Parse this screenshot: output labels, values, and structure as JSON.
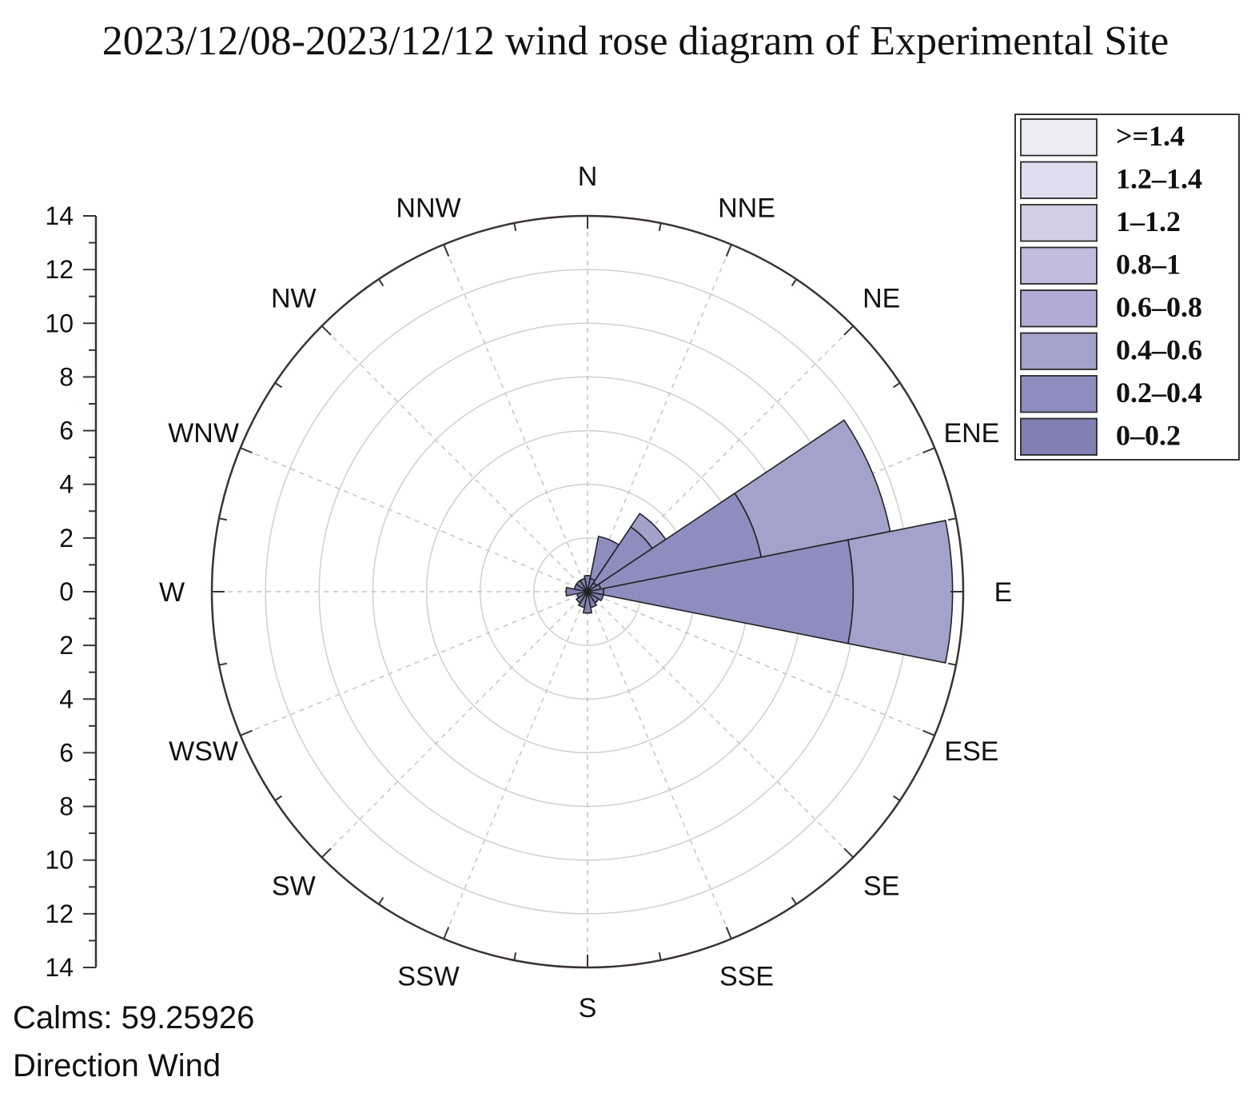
{
  "chart_data": {
    "type": "wind-rose",
    "title": "2023/12/08-2023/12/12 wind rose diagram of Experimental Site",
    "radial_axis": {
      "range": [
        0,
        14
      ],
      "ticks_top": [
        "14",
        "12",
        "10",
        "8",
        "6",
        "4",
        "2",
        "0"
      ],
      "ticks_bottom": [
        "2",
        "4",
        "6",
        "8",
        "10",
        "12",
        "14"
      ]
    },
    "directions": [
      "N",
      "NNE",
      "NE",
      "ENE",
      "E",
      "ESE",
      "SE",
      "SSE",
      "S",
      "SSW",
      "SW",
      "WSW",
      "W",
      "WNW",
      "NW",
      "NNW"
    ],
    "legend": {
      "position": "top-right",
      "bins": [
        ">=1.4",
        "1.2–1.4",
        "1–1.2",
        "0.8–1",
        "0.6–0.8",
        "0.4–0.6",
        "0.2–0.4",
        "0–0.2"
      ],
      "colors": [
        "#ececf4",
        "#e0ddee",
        "#d4cde6",
        "#c3bcde",
        "#b1abd6",
        "#a2a2cb",
        "#8d8dc0",
        "#8080b2"
      ]
    },
    "series": [
      {
        "name": "0–0.2",
        "values": [
          0.6,
          0.5,
          0.4,
          0.5,
          0.6,
          0.6,
          0.5,
          0.6,
          0.8,
          0.6,
          0.5,
          0.4,
          0.8,
          0.5,
          0.5,
          0.5
        ]
      },
      {
        "name": "0.2–0.4",
        "values": [
          0.0,
          1.6,
          2.5,
          6.1,
          9.3,
          0,
          0,
          0,
          0,
          0,
          0,
          0,
          0,
          0,
          0,
          0
        ]
      },
      {
        "name": "0.4–0.6",
        "values": [
          0.0,
          0.0,
          0.6,
          4.9,
          3.7,
          0,
          0,
          0,
          0,
          0,
          0,
          0,
          0,
          0,
          0,
          0
        ]
      }
    ],
    "grid": true,
    "grid_step": 2
  },
  "footer": {
    "calms": "Calms: 59.25926",
    "label": "Direction Wind"
  }
}
